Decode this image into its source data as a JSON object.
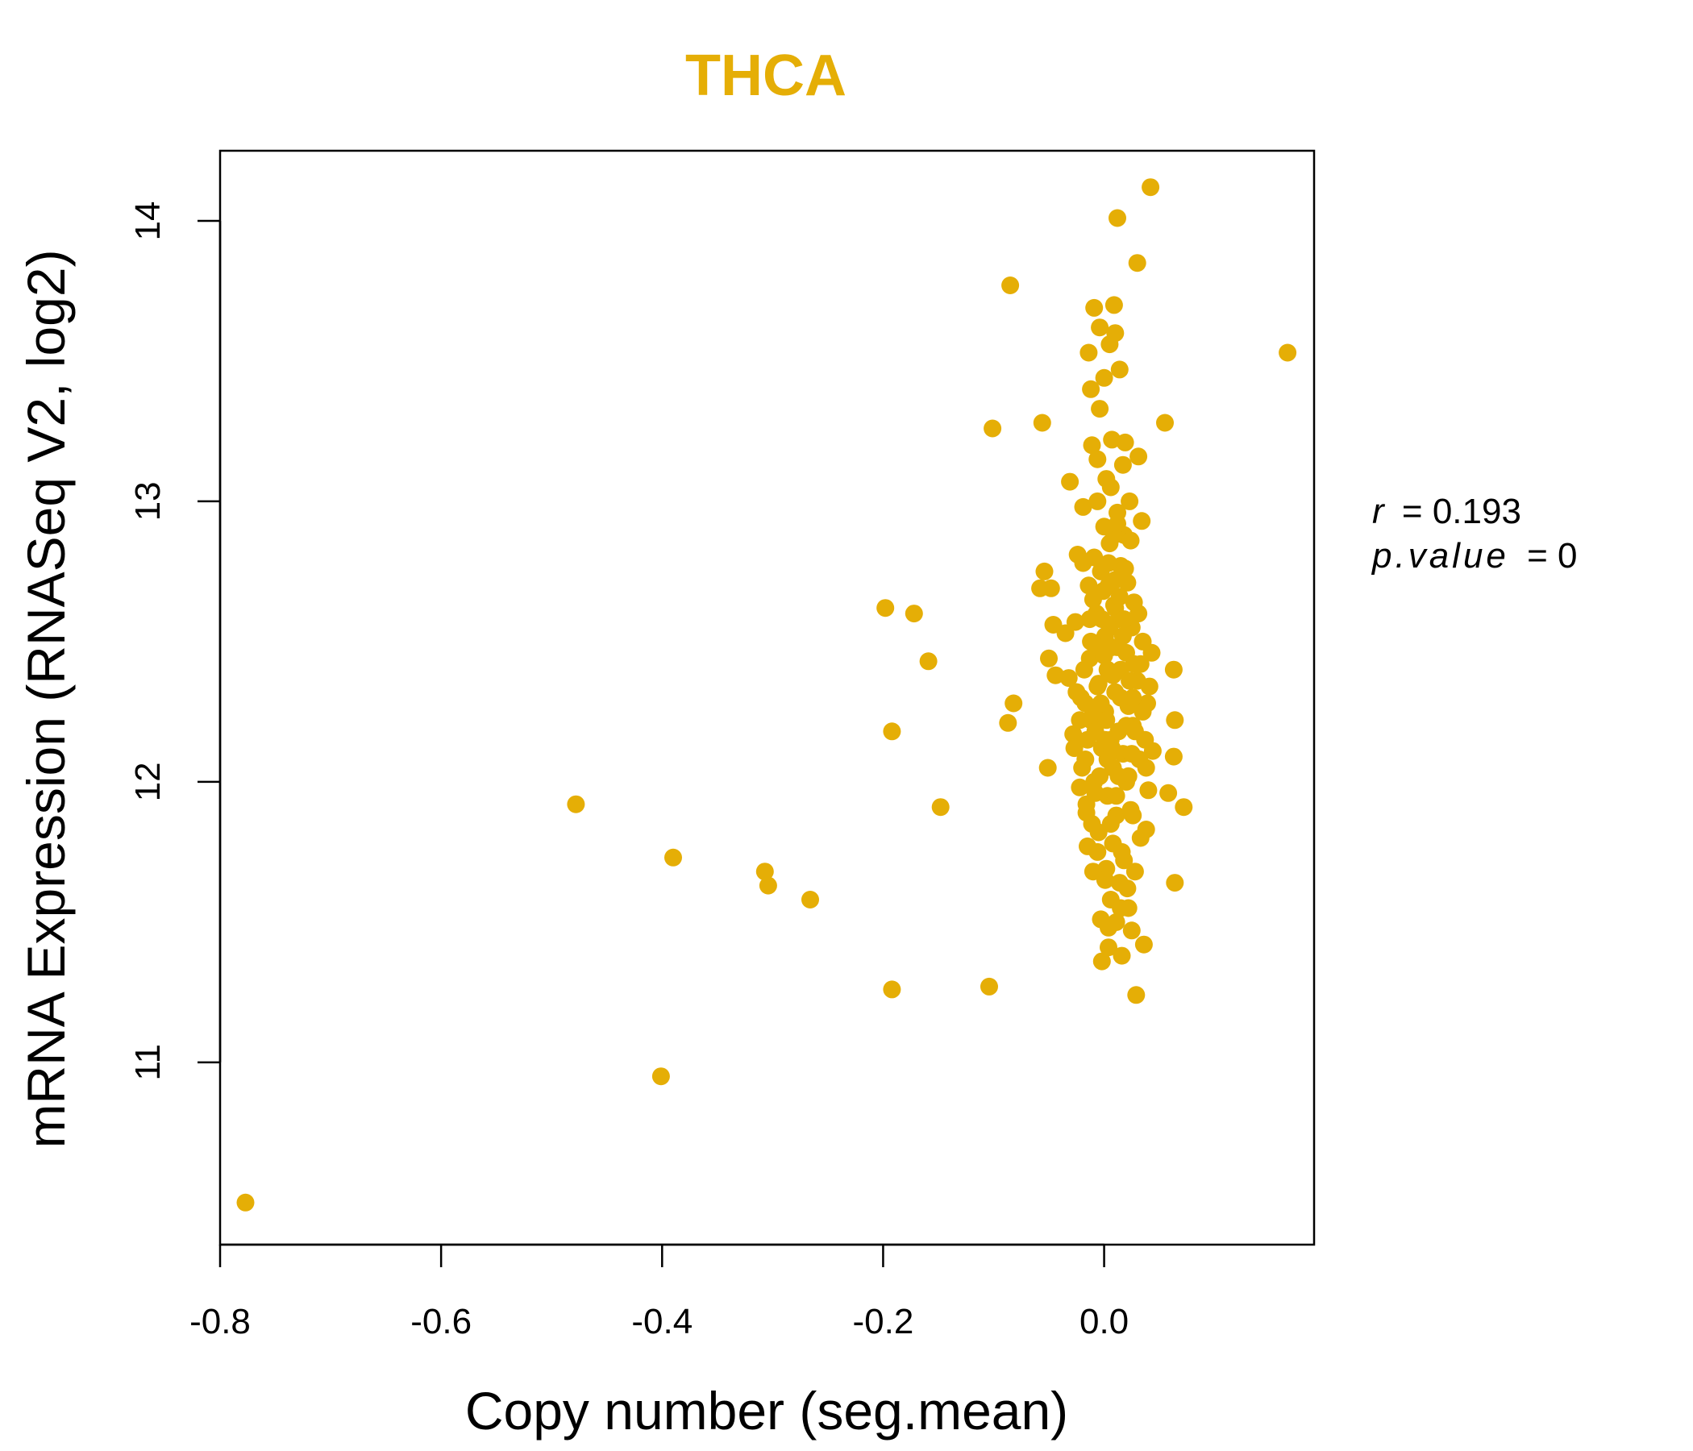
{
  "chart_data": {
    "type": "scatter",
    "title": "THCA",
    "title_color": "#E5AE06",
    "point_color": "#E5AE06",
    "xlabel": "Copy number (seg.mean)",
    "ylabel": "mRNA Expression (RNASeq V2, log2)",
    "xlim": [
      -0.8,
      0.19
    ],
    "ylim": [
      10.35,
      14.25
    ],
    "x_ticks": [
      -0.8,
      -0.6,
      -0.4,
      -0.2,
      0.0
    ],
    "x_tick_labels": [
      "-0.8",
      "-0.6",
      "-0.4",
      "-0.2",
      "0.0"
    ],
    "y_ticks": [
      11,
      12,
      13,
      14
    ],
    "y_tick_labels": [
      "11",
      "12",
      "13",
      "14"
    ],
    "grid": false,
    "legend": "none",
    "annotation": {
      "r_label": "r",
      "r_value": "0.193",
      "p_label": "p.value",
      "p_value": "0"
    },
    "points": [
      [
        -0.777,
        10.5
      ],
      [
        -0.478,
        11.92
      ],
      [
        -0.401,
        10.95
      ],
      [
        -0.39,
        11.73
      ],
      [
        -0.307,
        11.68
      ],
      [
        -0.304,
        11.63
      ],
      [
        -0.266,
        11.58
      ],
      [
        -0.198,
        12.62
      ],
      [
        -0.192,
        12.18
      ],
      [
        -0.192,
        11.26
      ],
      [
        -0.172,
        12.6
      ],
      [
        -0.159,
        12.43
      ],
      [
        -0.148,
        11.91
      ],
      [
        -0.104,
        11.27
      ],
      [
        -0.101,
        13.26
      ],
      [
        -0.087,
        12.21
      ],
      [
        -0.085,
        13.77
      ],
      [
        -0.082,
        12.28
      ],
      [
        -0.056,
        13.28
      ],
      [
        -0.054,
        12.75
      ],
      [
        -0.058,
        12.69
      ],
      [
        -0.048,
        12.69
      ],
      [
        -0.05,
        12.44
      ],
      [
        -0.046,
        12.56
      ],
      [
        -0.044,
        12.38
      ],
      [
        -0.051,
        12.05
      ],
      [
        -0.035,
        12.53
      ],
      [
        -0.032,
        12.37
      ],
      [
        -0.031,
        13.07
      ],
      [
        -0.028,
        12.17
      ],
      [
        -0.026,
        12.57
      ],
      [
        -0.024,
        12.81
      ],
      [
        -0.022,
        11.98
      ],
      [
        -0.021,
        12.3
      ],
      [
        -0.019,
        12.98
      ],
      [
        -0.019,
        12.78
      ],
      [
        -0.017,
        12.08
      ],
      [
        -0.016,
        11.89
      ],
      [
        -0.015,
        11.77
      ],
      [
        -0.014,
        13.53
      ],
      [
        -0.013,
        12.44
      ],
      [
        -0.012,
        13.4
      ],
      [
        -0.012,
        12.22
      ],
      [
        -0.011,
        13.2
      ],
      [
        -0.01,
        12.65
      ],
      [
        -0.009,
        13.69
      ],
      [
        -0.009,
        12.0
      ],
      [
        -0.008,
        11.96
      ],
      [
        -0.007,
        12.6
      ],
      [
        -0.006,
        13.15
      ],
      [
        -0.006,
        12.34
      ],
      [
        -0.005,
        11.82
      ],
      [
        -0.004,
        13.62
      ],
      [
        -0.004,
        13.33
      ],
      [
        -0.003,
        12.75
      ],
      [
        -0.003,
        11.51
      ],
      [
        -0.002,
        12.12
      ],
      [
        -0.002,
        11.36
      ],
      [
        0.0,
        13.44
      ],
      [
        0.0,
        12.91
      ],
      [
        0.001,
        12.52
      ],
      [
        0.001,
        12.25
      ],
      [
        0.002,
        11.69
      ],
      [
        0.002,
        13.08
      ],
      [
        0.003,
        12.4
      ],
      [
        0.003,
        11.95
      ],
      [
        0.004,
        12.7
      ],
      [
        0.004,
        11.41
      ],
      [
        0.005,
        13.56
      ],
      [
        0.005,
        12.85
      ],
      [
        0.006,
        12.15
      ],
      [
        0.006,
        11.58
      ],
      [
        0.007,
        13.22
      ],
      [
        0.007,
        12.48
      ],
      [
        0.008,
        12.05
      ],
      [
        0.008,
        11.78
      ],
      [
        0.009,
        13.7
      ],
      [
        0.009,
        12.63
      ],
      [
        0.01,
        13.6
      ],
      [
        0.01,
        12.32
      ],
      [
        0.011,
        11.88
      ],
      [
        0.011,
        11.5
      ],
      [
        0.012,
        14.01
      ],
      [
        0.012,
        12.96
      ],
      [
        0.013,
        12.58
      ],
      [
        0.013,
        12.18
      ],
      [
        0.014,
        13.47
      ],
      [
        0.014,
        11.64
      ],
      [
        0.015,
        12.77
      ],
      [
        0.015,
        12.4
      ],
      [
        0.016,
        11.38
      ],
      [
        0.017,
        12.1
      ],
      [
        0.017,
        13.13
      ],
      [
        0.018,
        12.88
      ],
      [
        0.018,
        11.72
      ],
      [
        0.019,
        13.21
      ],
      [
        0.02,
        12.46
      ],
      [
        0.02,
        12.0
      ],
      [
        0.021,
        12.71
      ],
      [
        0.022,
        11.55
      ],
      [
        0.022,
        12.27
      ],
      [
        0.023,
        13.0
      ],
      [
        0.024,
        11.9
      ],
      [
        0.025,
        12.55
      ],
      [
        0.025,
        11.47
      ],
      [
        0.026,
        12.2
      ],
      [
        0.027,
        12.64
      ],
      [
        0.028,
        11.68
      ],
      [
        0.029,
        11.24
      ],
      [
        0.03,
        13.85
      ],
      [
        0.03,
        12.36
      ],
      [
        0.031,
        13.16
      ],
      [
        0.032,
        12.08
      ],
      [
        0.033,
        11.8
      ],
      [
        0.034,
        12.93
      ],
      [
        0.035,
        12.5
      ],
      [
        0.036,
        11.42
      ],
      [
        0.037,
        12.15
      ],
      [
        0.038,
        11.83
      ],
      [
        0.039,
        12.28
      ],
      [
        0.04,
        11.97
      ],
      [
        0.041,
        12.34
      ],
      [
        0.042,
        14.12
      ],
      [
        0.043,
        12.46
      ],
      [
        0.044,
        12.11
      ],
      [
        0.055,
        13.28
      ],
      [
        0.058,
        11.96
      ],
      [
        0.063,
        12.4
      ],
      [
        0.063,
        12.09
      ],
      [
        0.064,
        11.64
      ],
      [
        0.064,
        12.22
      ],
      [
        0.072,
        11.91
      ],
      [
        0.166,
        13.53
      ],
      [
        -0.02,
        12.05
      ],
      [
        -0.015,
        12.15
      ],
      [
        -0.01,
        12.25
      ],
      [
        -0.005,
        12.35
      ],
      [
        0.0,
        12.45
      ],
      [
        0.005,
        12.55
      ],
      [
        0.01,
        12.62
      ],
      [
        0.015,
        12.3
      ],
      [
        0.02,
        12.2
      ],
      [
        0.025,
        12.1
      ],
      [
        -0.018,
        12.4
      ],
      [
        -0.012,
        12.5
      ],
      [
        -0.008,
        12.18
      ],
      [
        -0.003,
        12.28
      ],
      [
        0.003,
        12.08
      ],
      [
        0.008,
        12.38
      ],
      [
        0.012,
        12.48
      ],
      [
        0.018,
        12.58
      ],
      [
        0.022,
        12.02
      ],
      [
        0.027,
        12.42
      ],
      [
        -0.016,
        11.92
      ],
      [
        -0.011,
        11.85
      ],
      [
        -0.006,
        11.75
      ],
      [
        0.001,
        11.65
      ],
      [
        0.006,
        11.85
      ],
      [
        0.011,
        11.95
      ],
      [
        0.016,
        11.75
      ],
      [
        0.021,
        11.62
      ],
      [
        0.026,
        11.88
      ],
      [
        -0.014,
        12.7
      ],
      [
        -0.009,
        12.8
      ],
      [
        -0.001,
        12.68
      ],
      [
        0.004,
        12.78
      ],
      [
        0.009,
        12.88
      ],
      [
        0.014,
        12.66
      ],
      [
        0.019,
        12.76
      ],
      [
        0.024,
        12.86
      ],
      [
        0.031,
        12.6
      ],
      [
        0.035,
        12.25
      ],
      [
        0.038,
        12.05
      ],
      [
        -0.022,
        12.22
      ],
      [
        -0.025,
        12.32
      ],
      [
        -0.027,
        12.12
      ],
      [
        0.033,
        12.42
      ],
      [
        0.028,
        12.18
      ],
      [
        -0.004,
        12.02
      ],
      [
        0.002,
        12.22
      ],
      [
        0.007,
        12.12
      ],
      [
        0.013,
        12.02
      ],
      [
        -0.013,
        12.58
      ],
      [
        -0.007,
        12.48
      ],
      [
        0.017,
        12.52
      ],
      [
        0.023,
        12.36
      ],
      [
        -0.002,
        12.58
      ],
      [
        0.01,
        12.72
      ],
      [
        -0.01,
        11.68
      ],
      [
        0.015,
        11.55
      ],
      [
        0.004,
        11.48
      ],
      [
        -0.006,
        13.0
      ],
      [
        0.006,
        13.05
      ],
      [
        0.012,
        12.92
      ],
      [
        -0.017,
        12.28
      ],
      [
        0.026,
        12.3
      ],
      [
        0.001,
        12.15
      ]
    ]
  }
}
